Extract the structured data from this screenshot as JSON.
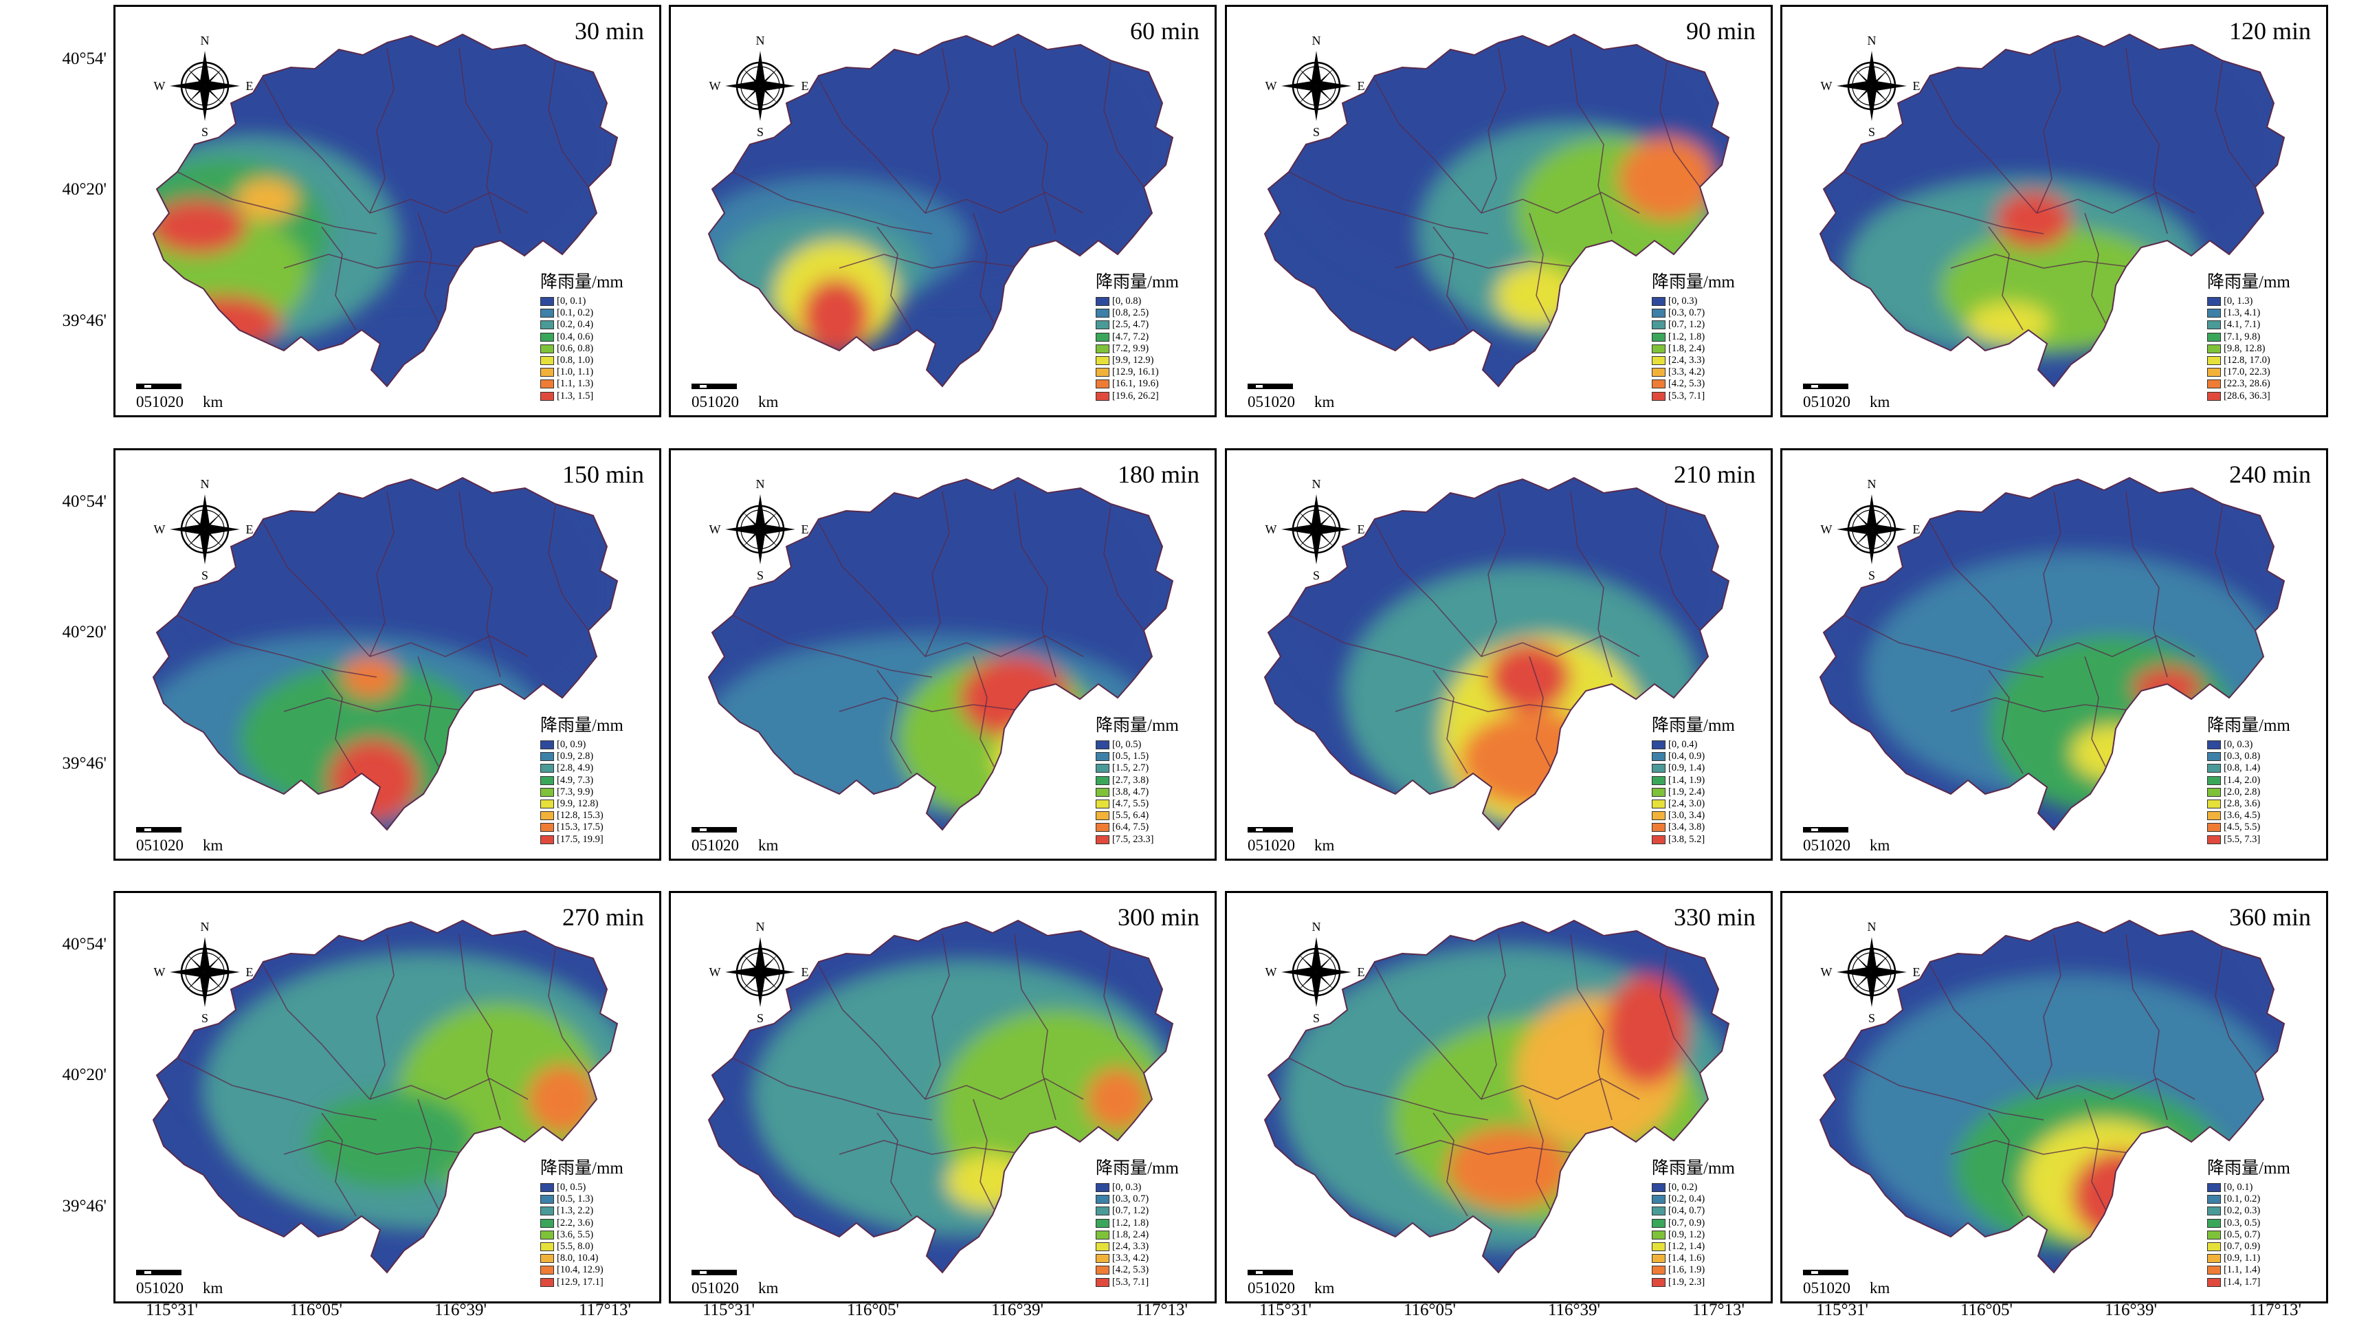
{
  "figure": {
    "lat_labels": [
      "40°54'",
      "40°20'",
      "39°46'"
    ],
    "lon_labels": [
      "115°31'",
      "116°05'",
      "116°39'",
      "117°13'"
    ],
    "compass": {
      "n": "N",
      "s": "S",
      "e": "E",
      "w": "W",
      "icon": "compass-rose-icon"
    },
    "legend_title": "降雨量/mm",
    "scale_bar": {
      "numbers": "0510",
      "end": "20",
      "unit": "km"
    },
    "color_ramp": [
      "#2e4a9c",
      "#3d80a8",
      "#4a9a98",
      "#3aa65a",
      "#7ec23a",
      "#e6e03a",
      "#f2b23a",
      "#ef7c35",
      "#e04a3c"
    ],
    "panels": [
      {
        "title": "30 min",
        "legend": [
          "[0, 0.1)",
          "[0.1, 0.2)",
          "[0.2, 0.4)",
          "[0.4, 0.6)",
          "[0.6, 0.8)",
          "[0.8, 1.0)",
          "[1.0, 1.1)",
          "[1.1, 1.3)",
          "[1.3, 1.5]"
        ]
      },
      {
        "title": "60 min",
        "legend": [
          "[0, 0.8)",
          "[0.8, 2.5)",
          "[2.5, 4.7)",
          "[4.7, 7.2)",
          "[7.2, 9.9)",
          "[9.9, 12.9)",
          "[12.9, 16.1)",
          "[16.1, 19.6)",
          "[19.6, 26.2]"
        ]
      },
      {
        "title": "90 min",
        "legend": [
          "[0, 0.3)",
          "[0.3, 0.7)",
          "[0.7, 1.2)",
          "[1.2, 1.8)",
          "[1.8, 2.4)",
          "[2.4, 3.3)",
          "[3.3, 4.2)",
          "[4.2, 5.3)",
          "[5.3, 7.1]"
        ]
      },
      {
        "title": "120 min",
        "legend": [
          "[0, 1.3)",
          "[1.3, 4.1)",
          "[4.1, 7.1)",
          "[7.1, 9.8)",
          "[9.8, 12.8)",
          "[12.8, 17.0)",
          "[17.0, 22.3)",
          "[22.3, 28.6)",
          "[28.6, 36.3]"
        ]
      },
      {
        "title": "150 min",
        "legend": [
          "[0, 0.9)",
          "[0.9, 2.8)",
          "[2.8, 4.9)",
          "[4.9, 7.3)",
          "[7.3, 9.9)",
          "[9.9, 12.8)",
          "[12.8, 15.3)",
          "[15.3, 17.5)",
          "[17.5, 19.9]"
        ]
      },
      {
        "title": "180 min",
        "legend": [
          "[0, 0.5)",
          "[0.5, 1.5)",
          "[1.5, 2.7)",
          "[2.7, 3.8)",
          "[3.8, 4.7)",
          "[4.7, 5.5)",
          "[5.5, 6.4)",
          "[6.4, 7.5)",
          "[7.5, 23.3]"
        ]
      },
      {
        "title": "210 min",
        "legend": [
          "[0, 0.4)",
          "[0.4, 0.9)",
          "[0.9, 1.4)",
          "[1.4, 1.9)",
          "[1.9, 2.4)",
          "[2.4, 3.0)",
          "[3.0, 3.4)",
          "[3.4, 3.8)",
          "[3.8, 5.2]"
        ]
      },
      {
        "title": "240 min",
        "legend": [
          "[0, 0.3)",
          "[0.3, 0.8)",
          "[0.8, 1.4)",
          "[1.4, 2.0)",
          "[2.0, 2.8)",
          "[2.8, 3.6)",
          "[3.6, 4.5)",
          "[4.5, 5.5)",
          "[5.5, 7.3]"
        ]
      },
      {
        "title": "270 min",
        "legend": [
          "[0, 0.5)",
          "[0.5, 1.3)",
          "[1.3, 2.2)",
          "[2.2, 3.6)",
          "[3.6, 5.5)",
          "[5.5, 8.0)",
          "[8.0, 10.4)",
          "[10.4, 12.9)",
          "[12.9, 17.1]"
        ]
      },
      {
        "title": "300 min",
        "legend": [
          "[0, 0.3)",
          "[0.3, 0.7)",
          "[0.7, 1.2)",
          "[1.2, 1.8)",
          "[1.8, 2.4)",
          "[2.4, 3.3)",
          "[3.3, 4.2)",
          "[4.2, 5.3)",
          "[5.3, 7.1]"
        ]
      },
      {
        "title": "330 min",
        "legend": [
          "[0, 0.2)",
          "[0.2, 0.4)",
          "[0.4, 0.7)",
          "[0.7, 0.9)",
          "[0.9, 1.2)",
          "[1.2, 1.4)",
          "[1.4, 1.6)",
          "[1.6, 1.9)",
          "[1.9, 2.3]"
        ]
      },
      {
        "title": "360 min",
        "legend": [
          "[0, 0.1)",
          "[0.1, 0.2)",
          "[0.2, 0.3)",
          "[0.3, 0.5)",
          "[0.5, 0.7)",
          "[0.7, 0.9)",
          "[0.9, 1.1)",
          "[1.1, 1.4)",
          "[1.4, 1.7]"
        ]
      }
    ]
  }
}
